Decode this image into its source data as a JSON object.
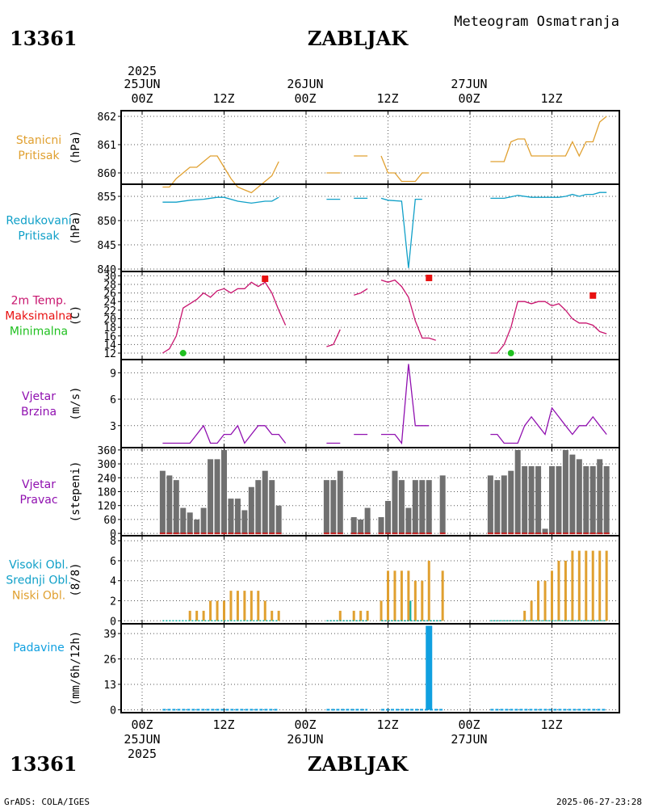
{
  "header": {
    "station_id": "13361",
    "station_name": "ZABLJAK",
    "meteogram_title": "Meteogram Osmatranja"
  },
  "footer": {
    "station_id": "13361",
    "station_name": "ZABLJAK",
    "credit": "GrADS: COLA/IGES",
    "generated": "2025-06-27-23:28"
  },
  "colors": {
    "pressure": "#e0a030",
    "reduced_pressure": "#10a0c8",
    "temp": "#c8146e",
    "tmax": "#e81010",
    "tmin": "#20c020",
    "wind": "#9010b0",
    "bars": "#707070",
    "cloud": "#e0a030",
    "mid_cloud": "#10b0a0",
    "precip": "#10a0e0"
  },
  "time_axis": {
    "top_year": "2025",
    "top_dates": [
      "25JUN",
      "26JUN",
      "27JUN"
    ],
    "hour_labels": [
      "00Z",
      "12Z",
      "00Z",
      "12Z",
      "00Z",
      "12Z"
    ],
    "bottom_dates": [
      "25JUN",
      "26JUN",
      "27JUN"
    ],
    "bottom_year": "2025"
  },
  "chart_data": [
    {
      "type": "line",
      "id": "station_pressure",
      "title_lines": [
        "Stanicni",
        "Pritisak"
      ],
      "ylabel": "(hPa)",
      "ylim": [
        859.6,
        862.2
      ],
      "yticks": [
        860,
        861,
        862
      ],
      "x_unit": "hours since 25JUN 00Z",
      "segments": [
        [
          [
            3,
            859.5
          ],
          [
            4,
            859.5
          ],
          [
            5,
            859.8
          ],
          [
            6,
            860.0
          ],
          [
            7,
            860.2
          ],
          [
            8,
            860.2
          ],
          [
            9,
            860.4
          ],
          [
            10,
            860.6
          ],
          [
            11,
            860.6
          ],
          [
            12,
            860.2
          ],
          [
            13,
            859.8
          ],
          [
            14,
            859.5
          ],
          [
            15,
            859.4
          ],
          [
            16,
            859.3
          ],
          [
            17,
            859.5
          ],
          [
            18,
            859.7
          ],
          [
            19,
            859.9
          ],
          [
            20,
            860.4
          ]
        ],
        [
          [
            27,
            860.0
          ],
          [
            28,
            860.0
          ],
          [
            29,
            860.0
          ]
        ],
        [
          [
            31,
            860.6
          ],
          [
            32,
            860.6
          ],
          [
            33,
            860.6
          ]
        ],
        [
          [
            35,
            860.6
          ],
          [
            36,
            860.0
          ],
          [
            37,
            860.0
          ],
          [
            38,
            859.7
          ],
          [
            39,
            859.7
          ],
          [
            40,
            859.7
          ],
          [
            41,
            860.0
          ],
          [
            42,
            860.0
          ]
        ],
        [
          [
            51,
            860.4
          ],
          [
            52,
            860.4
          ],
          [
            53,
            860.4
          ],
          [
            54,
            861.1
          ],
          [
            55,
            861.2
          ],
          [
            56,
            861.2
          ],
          [
            57,
            860.6
          ],
          [
            58,
            860.6
          ],
          [
            59,
            860.6
          ],
          [
            60,
            860.6
          ],
          [
            61,
            860.6
          ],
          [
            62,
            860.6
          ],
          [
            63,
            861.1
          ],
          [
            64,
            860.6
          ],
          [
            65,
            861.1
          ],
          [
            66,
            861.1
          ],
          [
            67,
            861.8
          ],
          [
            68,
            862.0
          ]
        ]
      ]
    },
    {
      "type": "line",
      "id": "reduced_pressure",
      "title_lines": [
        "Redukovani",
        "Pritisak"
      ],
      "ylabel": "(hPa)",
      "ylim": [
        839.5,
        857.5
      ],
      "yticks": [
        840,
        845,
        850,
        855
      ],
      "segments": [
        [
          [
            3,
            853.8
          ],
          [
            5,
            853.8
          ],
          [
            7,
            854.2
          ],
          [
            9,
            854.4
          ],
          [
            11,
            854.8
          ],
          [
            12,
            854.8
          ],
          [
            14,
            854.0
          ],
          [
            16,
            853.6
          ],
          [
            18,
            854.0
          ],
          [
            19,
            854.0
          ],
          [
            20,
            854.8
          ]
        ],
        [
          [
            27,
            854.4
          ],
          [
            29,
            854.4
          ]
        ],
        [
          [
            31,
            854.6
          ],
          [
            33,
            854.6
          ]
        ],
        [
          [
            35,
            854.6
          ],
          [
            36,
            854.2
          ],
          [
            38,
            854.0
          ],
          [
            39,
            840.2
          ],
          [
            40,
            854.4
          ],
          [
            41,
            854.4
          ]
        ],
        [
          [
            51,
            854.6
          ],
          [
            53,
            854.6
          ],
          [
            55,
            855.2
          ],
          [
            57,
            854.8
          ],
          [
            59,
            854.8
          ],
          [
            61,
            854.8
          ],
          [
            62,
            855.0
          ],
          [
            63,
            855.4
          ],
          [
            64,
            855.0
          ],
          [
            65,
            855.4
          ],
          [
            66,
            855.4
          ],
          [
            67,
            855.8
          ],
          [
            68,
            855.8
          ]
        ]
      ]
    },
    {
      "type": "line",
      "id": "temperature",
      "title_lines": [
        "2m Temp.",
        "Maksimalna",
        "Minimalna"
      ],
      "ylabel": "(C)",
      "ylim": [
        10.5,
        31
      ],
      "yticks": [
        12,
        14,
        16,
        18,
        20,
        22,
        24,
        26,
        28,
        30
      ],
      "segments": [
        [
          [
            3,
            12.0
          ],
          [
            4,
            13.0
          ],
          [
            5,
            16.0
          ],
          [
            6,
            22.5
          ],
          [
            7,
            23.5
          ],
          [
            8,
            24.5
          ],
          [
            9,
            26.0
          ],
          [
            10,
            25.0
          ],
          [
            11,
            26.5
          ],
          [
            12,
            27.0
          ],
          [
            13,
            26.0
          ],
          [
            14,
            27.0
          ],
          [
            15,
            27.0
          ],
          [
            16,
            28.5
          ],
          [
            17,
            27.5
          ],
          [
            18,
            28.5
          ],
          [
            19,
            26.0
          ],
          [
            20,
            22.0
          ],
          [
            21,
            18.5
          ]
        ],
        [
          [
            27,
            13.5
          ],
          [
            28,
            14.0
          ],
          [
            29,
            17.5
          ]
        ],
        [
          [
            31,
            25.5
          ],
          [
            32,
            26.0
          ],
          [
            33,
            27.0
          ]
        ],
        [
          [
            35,
            29.0
          ],
          [
            36,
            28.5
          ],
          [
            37,
            29.0
          ],
          [
            38,
            27.5
          ],
          [
            39,
            25.0
          ],
          [
            40,
            19.5
          ],
          [
            41,
            15.5
          ],
          [
            42,
            15.5
          ],
          [
            43,
            15.0
          ]
        ],
        [
          [
            51,
            12.0
          ],
          [
            52,
            12.0
          ],
          [
            53,
            14.0
          ],
          [
            54,
            18.0
          ],
          [
            55,
            24.0
          ],
          [
            56,
            24.0
          ],
          [
            57,
            23.5
          ],
          [
            58,
            24.0
          ],
          [
            59,
            24.0
          ],
          [
            60,
            23.0
          ],
          [
            61,
            23.5
          ],
          [
            62,
            22.0
          ],
          [
            63,
            20.0
          ],
          [
            64,
            19.0
          ],
          [
            65,
            19.0
          ],
          [
            66,
            18.5
          ],
          [
            67,
            17.0
          ],
          [
            68,
            16.5
          ]
        ]
      ],
      "max_points": [
        [
          18,
          29.3
        ],
        [
          42,
          29.5
        ],
        [
          66,
          25.4
        ]
      ],
      "min_points": [
        [
          6,
          12.0
        ],
        [
          54,
          12.0
        ]
      ]
    },
    {
      "type": "line",
      "id": "wind_speed",
      "title_lines": [
        "Vjetar",
        "Brzina"
      ],
      "ylabel": "(m/s)",
      "ylim": [
        0.5,
        10.5
      ],
      "yticks": [
        3,
        6,
        9
      ],
      "segments": [
        [
          [
            3,
            1.0
          ],
          [
            4,
            1.0
          ],
          [
            5,
            1.0
          ],
          [
            6,
            1.0
          ],
          [
            7,
            1.0
          ],
          [
            8,
            2.0
          ],
          [
            9,
            3.0
          ],
          [
            10,
            1.0
          ],
          [
            11,
            1.0
          ],
          [
            12,
            2.0
          ],
          [
            13,
            2.0
          ],
          [
            14,
            3.0
          ],
          [
            15,
            1.0
          ],
          [
            16,
            2.0
          ],
          [
            17,
            3.0
          ],
          [
            18,
            3.0
          ],
          [
            19,
            2.0
          ],
          [
            20,
            2.0
          ],
          [
            21,
            1.0
          ]
        ],
        [
          [
            27,
            1.0
          ],
          [
            28,
            1.0
          ],
          [
            29,
            1.0
          ]
        ],
        [
          [
            31,
            2.0
          ],
          [
            32,
            2.0
          ],
          [
            33,
            2.0
          ]
        ],
        [
          [
            35,
            2.0
          ],
          [
            36,
            2.0
          ],
          [
            37,
            2.0
          ],
          [
            38,
            1.0
          ],
          [
            39,
            10.0
          ],
          [
            40,
            3.0
          ],
          [
            41,
            3.0
          ],
          [
            42,
            3.0
          ]
        ],
        [
          [
            51,
            2.0
          ],
          [
            52,
            2.0
          ],
          [
            53,
            1.0
          ],
          [
            54,
            1.0
          ],
          [
            55,
            1.0
          ],
          [
            56,
            3.0
          ],
          [
            57,
            4.0
          ],
          [
            58,
            3.0
          ],
          [
            59,
            2.0
          ],
          [
            60,
            5.0
          ],
          [
            61,
            4.0
          ],
          [
            62,
            3.0
          ],
          [
            63,
            2.0
          ],
          [
            64,
            3.0
          ],
          [
            65,
            3.0
          ],
          [
            66,
            4.0
          ],
          [
            67,
            3.0
          ],
          [
            68,
            2.0
          ]
        ]
      ]
    },
    {
      "type": "bar",
      "id": "wind_direction",
      "title_lines": [
        "Vjetar",
        "Pravac"
      ],
      "ylabel": "(stepeni)",
      "ylim": [
        -10,
        370
      ],
      "yticks": [
        0,
        60,
        120,
        180,
        240,
        300,
        360
      ],
      "x": [
        3,
        4,
        5,
        6,
        7,
        8,
        9,
        10,
        11,
        12,
        13,
        14,
        15,
        16,
        17,
        18,
        19,
        20,
        27,
        28,
        29,
        31,
        32,
        33,
        35,
        36,
        37,
        38,
        39,
        40,
        41,
        42,
        44,
        51,
        52,
        53,
        54,
        55,
        56,
        57,
        58,
        59,
        60,
        61,
        62,
        63,
        64,
        65,
        66,
        67,
        68
      ],
      "values": [
        270,
        250,
        230,
        110,
        90,
        60,
        110,
        320,
        320,
        360,
        150,
        150,
        100,
        200,
        230,
        270,
        230,
        120,
        230,
        230,
        270,
        70,
        60,
        110,
        70,
        140,
        270,
        230,
        110,
        230,
        230,
        230,
        250,
        250,
        230,
        250,
        270,
        360,
        290,
        290,
        290,
        20,
        290,
        290,
        360,
        340,
        320,
        290,
        290,
        320,
        290
      ]
    },
    {
      "type": "bar",
      "id": "cloudiness",
      "title_lines": [
        "Visoki Obl.",
        "Srednji Obl.",
        "Niski Obl."
      ],
      "ylabel": "(8/8)",
      "ylim": [
        -0.3,
        8.5
      ],
      "yticks": [
        0,
        2,
        4,
        6,
        8
      ],
      "x": [
        7,
        8,
        9,
        10,
        11,
        12,
        13,
        14,
        15,
        16,
        17,
        18,
        19,
        20,
        29,
        31,
        32,
        33,
        35,
        36,
        37,
        38,
        39,
        40,
        41,
        42,
        44,
        56,
        57,
        58,
        59,
        60,
        61,
        62,
        63,
        64,
        65,
        66,
        67,
        68
      ],
      "values": [
        1,
        1,
        1,
        2,
        2,
        2,
        3,
        3,
        3,
        3,
        3,
        2,
        1,
        1,
        1,
        1,
        1,
        1,
        2,
        5,
        5,
        5,
        5,
        4,
        4,
        6,
        5,
        1,
        2,
        4,
        4,
        5,
        6,
        6,
        7,
        7,
        7,
        7,
        7,
        7
      ],
      "mid_cloud_x": [
        39
      ],
      "mid_cloud_values": [
        2
      ]
    },
    {
      "type": "bar",
      "id": "precipitation",
      "title_lines": [
        "Padavine"
      ],
      "ylabel": "(mm/6h/12h)",
      "ylim": [
        -1.5,
        44
      ],
      "yticks": [
        0,
        13,
        26,
        39
      ],
      "x": [
        42
      ],
      "values": [
        43
      ]
    }
  ]
}
